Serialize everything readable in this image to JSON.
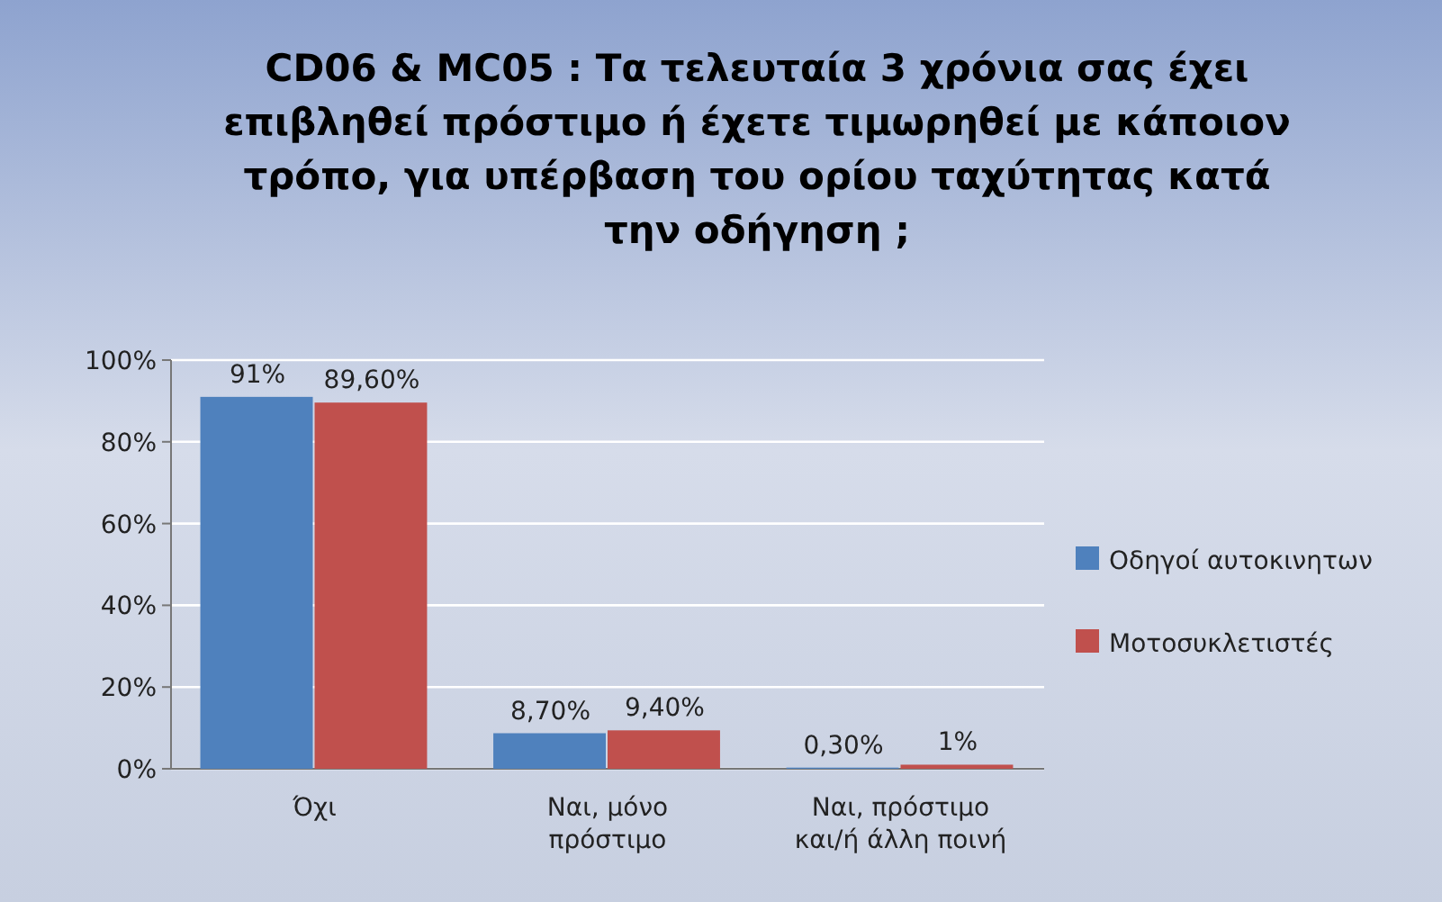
{
  "chart_data": {
    "type": "bar",
    "title": "CD06 & MC05 : Τα τελευταία 3 χρόνια σας έχει\nεπιβληθεί πρόστιμο ή έχετε τιμωρηθεί με κάποιον\nτρόπο, για υπέρβαση του ορίου ταχύτητας κατά\nτην οδήγηση ;",
    "categories": [
      "Όχι",
      "Ναι, μόνο πρόστιμο",
      "Ναι, πρόστιμο και/ή άλλη ποινή"
    ],
    "series": [
      {
        "name": "Οδηγοί αυτοκινητων",
        "color": "#4f81bd",
        "values": [
          91,
          8.7,
          0.3
        ],
        "value_labels": [
          "91%",
          "8,70%",
          "0,30%"
        ]
      },
      {
        "name": "Μοτοσυκλετιστές",
        "color": "#c0504d",
        "values": [
          89.6,
          9.4,
          1
        ],
        "value_labels": [
          "89,60%",
          "9,40%",
          "1%"
        ]
      }
    ],
    "ylim": [
      0,
      100
    ],
    "yticks": [
      {
        "value": 0,
        "label": "0%"
      },
      {
        "value": 20,
        "label": "20%"
      },
      {
        "value": 40,
        "label": "40%"
      },
      {
        "value": 60,
        "label": "60%"
      },
      {
        "value": 80,
        "label": "80%"
      },
      {
        "value": 100,
        "label": "100%"
      }
    ],
    "grid": "y",
    "legend": "right"
  }
}
